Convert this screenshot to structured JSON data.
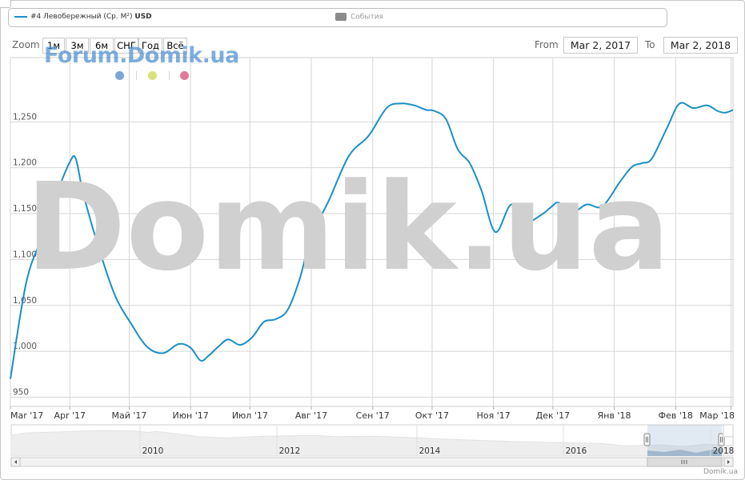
{
  "legend": {
    "series_label": "#4 Левобережный (Ср. М²)",
    "series_unit": "USD",
    "events_label": "События",
    "series_color": "#1a8fc6"
  },
  "zoom": {
    "label": "Zoom",
    "buttons": [
      "1м",
      "3м",
      "6м",
      "СНГ",
      "Год",
      "Всё"
    ]
  },
  "range": {
    "from_label": "From",
    "from_value": "Mar 2, 2017",
    "to_label": "To",
    "to_value": "Mar 2, 2018"
  },
  "watermark": {
    "forum_text": "Forum.Domik.ua",
    "big_text": "Domik.ua",
    "dot_colors": [
      "#7ba6d3",
      "#d9e07a",
      "#e07a9a"
    ]
  },
  "credit": "Domik.ua",
  "chart_data": {
    "type": "line",
    "x_start": "Mar 2, 2017",
    "x_end": "Mar 2, 2018",
    "xaxis_ticks": [
      "Mar '17",
      "Apr '17",
      "Май '17",
      "Июн '17",
      "Июл '17",
      "Авг '17",
      "Сен '17",
      "Окт '17",
      "Ноя '17",
      "Дек '17",
      "Янв '18",
      "Фев '18",
      "Мар '18"
    ],
    "yaxis_ticks": [
      "950",
      "1,000",
      "1,050",
      "1,100",
      "1,150",
      "1,200",
      "1,250"
    ],
    "ylim": [
      940,
      1320
    ],
    "series": [
      {
        "x": [
          "2017-03-02",
          "2017-03-10",
          "2017-03-18",
          "2017-03-26",
          "2017-04-01",
          "2017-04-04",
          "2017-04-08",
          "2017-04-16",
          "2017-04-24",
          "2017-05-02",
          "2017-05-10",
          "2017-05-18",
          "2017-05-26",
          "2017-06-01",
          "2017-06-06",
          "2017-06-10",
          "2017-06-15",
          "2017-06-20",
          "2017-06-26",
          "2017-07-02",
          "2017-07-08",
          "2017-07-14",
          "2017-07-20",
          "2017-07-26",
          "2017-08-01",
          "2017-08-10",
          "2017-08-20",
          "2017-08-30",
          "2017-09-08",
          "2017-09-15",
          "2017-09-22",
          "2017-09-28",
          "2017-10-02",
          "2017-10-08",
          "2017-10-14",
          "2017-10-20",
          "2017-10-26",
          "2017-11-02",
          "2017-11-10",
          "2017-11-18",
          "2017-11-26",
          "2017-11-30",
          "2017-12-04",
          "2017-12-10",
          "2017-12-18",
          "2017-12-26",
          "2018-01-04",
          "2018-01-10",
          "2018-01-15",
          "2018-01-20",
          "2018-01-28",
          "2018-02-03",
          "2018-02-10",
          "2018-02-17",
          "2018-02-22",
          "2018-02-26",
          "2018-03-02"
        ],
        "values": [
          970,
          1075,
          1125,
          1175,
          1206,
          1210,
          1170,
          1110,
          1060,
          1030,
          1005,
          998,
          1008,
          1004,
          990,
          995,
          1005,
          1013,
          1007,
          1015,
          1032,
          1035,
          1045,
          1078,
          1125,
          1165,
          1213,
          1235,
          1265,
          1270,
          1268,
          1263,
          1262,
          1253,
          1220,
          1205,
          1175,
          1130,
          1160,
          1142,
          1150,
          1157,
          1162,
          1150,
          1160,
          1158,
          1185,
          1201,
          1205,
          1210,
          1245,
          1270,
          1265,
          1268,
          1262,
          1260,
          1263
        ]
      }
    ],
    "navigator": {
      "year_labels": [
        "2010",
        "2012",
        "2014",
        "2016",
        "2018"
      ]
    }
  }
}
